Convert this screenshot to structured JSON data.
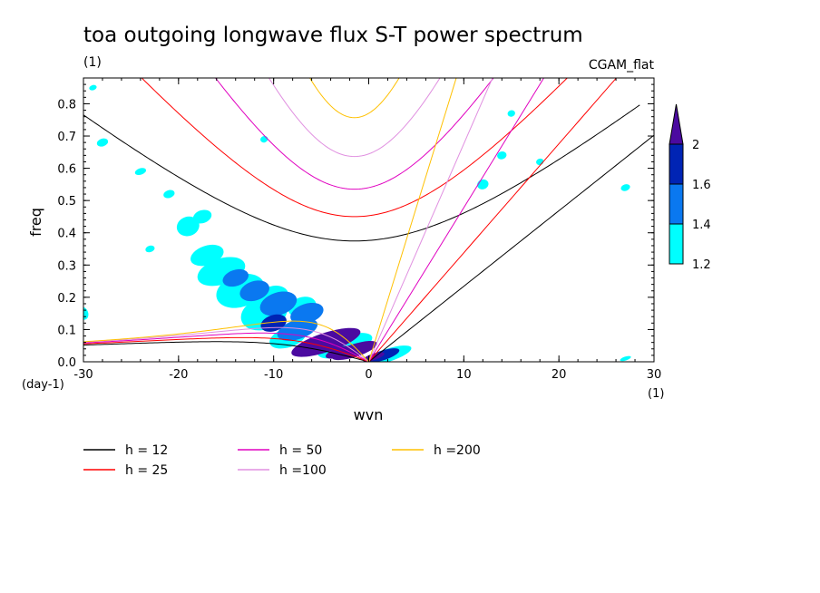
{
  "chart_data": {
    "type": "heatmap",
    "title": "toa outgoing longwave flux S-T power spectrum",
    "subtitle_left": "(1)",
    "subtitle_right": "CGAM_flat",
    "xlabel": "wvn",
    "ylabel": "freq",
    "x_unit_label": "(1)",
    "y_unit_label": "(day-1)",
    "xlim": [
      -30,
      30
    ],
    "ylim": [
      0,
      0.88
    ],
    "xticks": [
      -30,
      -20,
      -10,
      0,
      10,
      20,
      30
    ],
    "xtick_labels": [
      "-30",
      "-20",
      "-10",
      "0",
      "10",
      "20",
      "30"
    ],
    "yticks": [
      0,
      0.1,
      0.2,
      0.3,
      0.4,
      0.5,
      0.6,
      0.7,
      0.8
    ],
    "ytick_labels": [
      "0.0",
      "0.1",
      "0.2",
      "0.3",
      "0.4",
      "0.5",
      "0.6",
      "0.7",
      "0.8"
    ],
    "colorbar": {
      "levels": [
        1.2,
        1.4,
        1.6,
        2
      ],
      "labels": [
        "1.2",
        "1.4",
        "1.6",
        "2"
      ],
      "colors": [
        "#00ffff",
        "#0a78f0",
        "#0024b4",
        "#4b0aa0"
      ]
    },
    "contour_blobs": [
      {
        "x": -4.5,
        "y": 0.06,
        "rx": 3.8,
        "ry": 0.03,
        "level": 3
      },
      {
        "x": -1.5,
        "y": 0.035,
        "rx": 2.5,
        "ry": 0.02,
        "level": 3
      },
      {
        "x": 1.5,
        "y": 0.02,
        "rx": 1.8,
        "ry": 0.015,
        "level": 2
      },
      {
        "x": -7.5,
        "y": 0.1,
        "rx": 2.2,
        "ry": 0.03,
        "level": 1
      },
      {
        "x": -6.5,
        "y": 0.15,
        "rx": 1.8,
        "ry": 0.03,
        "level": 1
      },
      {
        "x": -9.5,
        "y": 0.18,
        "rx": 2.0,
        "ry": 0.035,
        "level": 1
      },
      {
        "x": -12,
        "y": 0.22,
        "rx": 1.6,
        "ry": 0.03,
        "level": 1
      },
      {
        "x": -14,
        "y": 0.26,
        "rx": 1.4,
        "ry": 0.025,
        "level": 1
      },
      {
        "x": -10,
        "y": 0.12,
        "rx": 1.4,
        "ry": 0.025,
        "level": 2
      },
      {
        "x": -6,
        "y": 0.045,
        "rx": 2.0,
        "ry": 0.02,
        "level": 4
      },
      {
        "x": -3,
        "y": 0.03,
        "rx": 1.6,
        "ry": 0.015,
        "level": 4
      },
      {
        "x": 0.5,
        "y": 0.015,
        "rx": 1.2,
        "ry": 0.01,
        "level": 3
      },
      {
        "x": -8.5,
        "y": 0.075,
        "rx": 2.0,
        "ry": 0.03,
        "level": 0
      },
      {
        "x": -11,
        "y": 0.15,
        "rx": 2.5,
        "ry": 0.05,
        "level": 0
      },
      {
        "x": -13.5,
        "y": 0.22,
        "rx": 2.6,
        "ry": 0.05,
        "level": 0
      },
      {
        "x": -15.5,
        "y": 0.28,
        "rx": 2.6,
        "ry": 0.04,
        "level": 0
      },
      {
        "x": -17,
        "y": 0.33,
        "rx": 1.8,
        "ry": 0.03,
        "level": 0
      },
      {
        "x": -19,
        "y": 0.42,
        "rx": 1.2,
        "ry": 0.03,
        "level": 0
      },
      {
        "x": -17.5,
        "y": 0.45,
        "rx": 1.0,
        "ry": 0.02,
        "level": 0
      },
      {
        "x": -7,
        "y": 0.17,
        "rx": 1.5,
        "ry": 0.03,
        "level": 0
      },
      {
        "x": -10,
        "y": 0.2,
        "rx": 1.6,
        "ry": 0.035,
        "level": 0
      },
      {
        "x": 2,
        "y": 0.02,
        "rx": 2.6,
        "ry": 0.02,
        "level": 0
      },
      {
        "x": -2.5,
        "y": 0.05,
        "rx": 3.0,
        "ry": 0.03,
        "level": 0
      },
      {
        "x": -24,
        "y": 0.59,
        "rx": 0.6,
        "ry": 0.01,
        "level": 0
      },
      {
        "x": -28,
        "y": 0.68,
        "rx": 0.6,
        "ry": 0.012,
        "level": 0
      },
      {
        "x": -30,
        "y": 0.15,
        "rx": 0.5,
        "ry": 0.02,
        "level": 0
      },
      {
        "x": -29,
        "y": 0.85,
        "rx": 0.4,
        "ry": 0.008,
        "level": 0
      },
      {
        "x": 14,
        "y": 0.64,
        "rx": 0.5,
        "ry": 0.012,
        "level": 0
      },
      {
        "x": 15,
        "y": 0.77,
        "rx": 0.4,
        "ry": 0.01,
        "level": 0
      },
      {
        "x": 27,
        "y": 0.01,
        "rx": 0.6,
        "ry": 0.006,
        "level": 0
      },
      {
        "x": 27,
        "y": 0.54,
        "rx": 0.5,
        "ry": 0.01,
        "level": 0
      },
      {
        "x": -21,
        "y": 0.52,
        "rx": 0.6,
        "ry": 0.012,
        "level": 0
      },
      {
        "x": -23,
        "y": 0.35,
        "rx": 0.5,
        "ry": 0.01,
        "level": 0
      },
      {
        "x": -11,
        "y": 0.69,
        "rx": 0.4,
        "ry": 0.01,
        "level": 0
      },
      {
        "x": 12,
        "y": 0.55,
        "rx": 0.6,
        "ry": 0.015,
        "level": 0
      },
      {
        "x": 18,
        "y": 0.62,
        "rx": 0.4,
        "ry": 0.01,
        "level": 0
      }
    ],
    "dispersion_curves": [
      {
        "name": "h = 12",
        "h": 12,
        "color": "#000000"
      },
      {
        "name": "h = 25",
        "h": 25,
        "color": "#ff0000"
      },
      {
        "name": "h = 50",
        "h": 50,
        "color": "#e000c0"
      },
      {
        "name": "h =100",
        "h": 100,
        "color": "#e090e0"
      },
      {
        "name": "h =200",
        "h": 200,
        "color": "#ffc000"
      }
    ],
    "legend_placement": "bottom-left",
    "grid": false
  }
}
